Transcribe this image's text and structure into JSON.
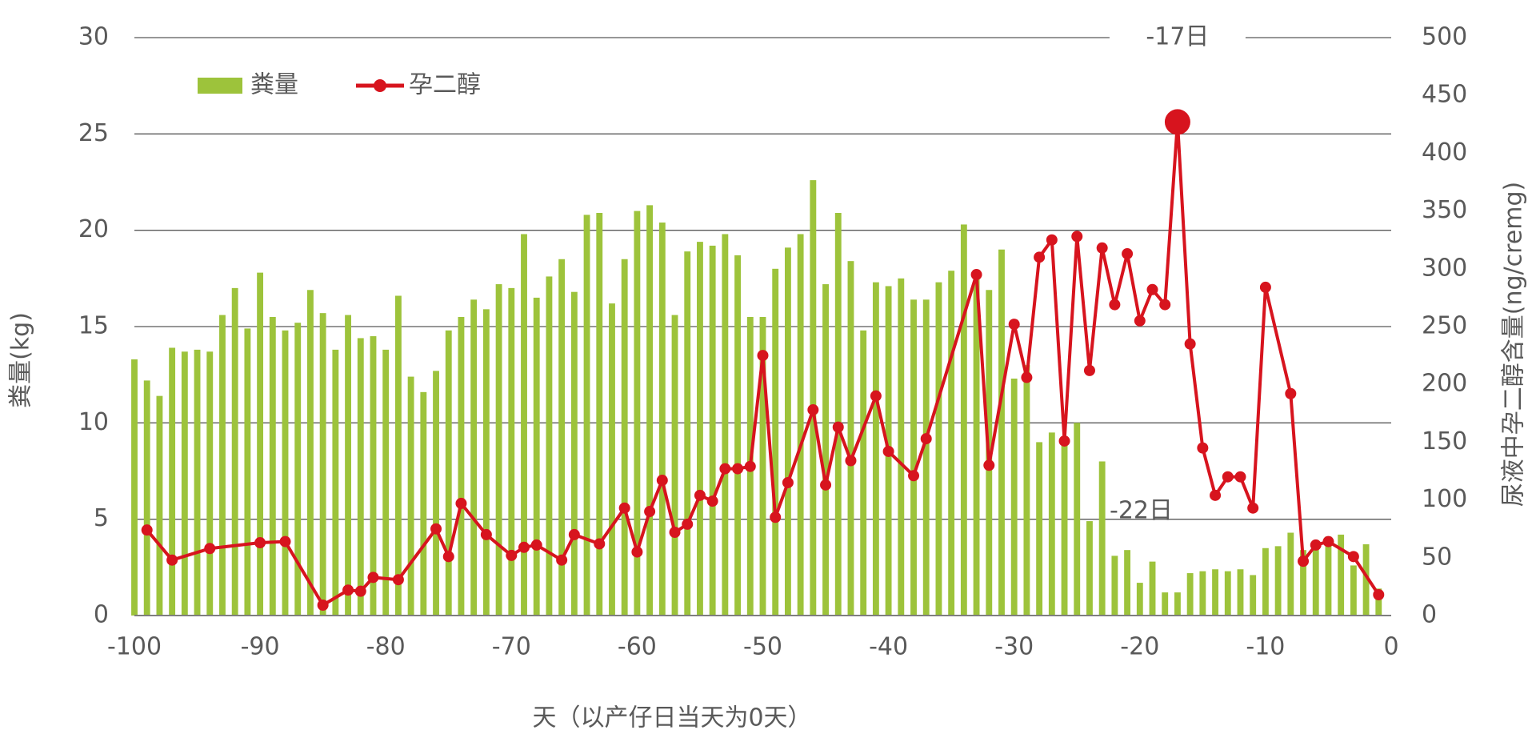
{
  "chart_data": {
    "type": "combo",
    "x_label": "天（以产仔日当天为0天）",
    "y_label": "粪量(kg)",
    "y2_label": "尿液中孕二醇含量(ng/cremg)",
    "xlim": [
      -100,
      0
    ],
    "xticks": [
      -100,
      -90,
      -80,
      -70,
      -60,
      -50,
      -40,
      -30,
      -20,
      -10,
      0
    ],
    "ylim": [
      0,
      30
    ],
    "yticks": [
      0,
      5,
      10,
      15,
      20,
      25,
      30
    ],
    "y2lim": [
      0,
      500
    ],
    "y2ticks": [
      0,
      50,
      100,
      150,
      200,
      250,
      300,
      350,
      400,
      450,
      500
    ],
    "grid": true,
    "legend": "top-left",
    "annotations": [
      "-17日",
      "-22日"
    ],
    "series": [
      {
        "name": "粪量",
        "type": "bar",
        "color": "#9dc33b",
        "x": [
          -100,
          -99,
          -98,
          -97,
          -96,
          -95,
          -94,
          -93,
          -92,
          -91,
          -90,
          -89,
          -88,
          -87,
          -86,
          -85,
          -84,
          -83,
          -82,
          -81,
          -80,
          -79,
          -78,
          -77,
          -76,
          -75,
          -74,
          -73,
          -72,
          -71,
          -70,
          -69,
          -68,
          -67,
          -66,
          -65,
          -64,
          -63,
          -62,
          -61,
          -60,
          -59,
          -58,
          -57,
          -56,
          -55,
          -54,
          -53,
          -52,
          -51,
          -50,
          -49,
          -48,
          -47,
          -46,
          -45,
          -44,
          -43,
          -42,
          -41,
          -40,
          -39,
          -38,
          -37,
          -36,
          -35,
          -34,
          -33,
          -32,
          -31,
          -30,
          -29,
          -28,
          -27,
          -26,
          -25,
          -24,
          -23,
          -22,
          -21,
          -20,
          -19,
          -18,
          -17,
          -16,
          -15,
          -14,
          -13,
          -12,
          -11,
          -10,
          -9,
          -8,
          -7,
          -6,
          -5,
          -4,
          -3,
          -2,
          -1
        ],
        "values": [
          13.3,
          12.2,
          11.4,
          13.9,
          13.7,
          13.8,
          13.7,
          15.6,
          17.0,
          14.9,
          17.8,
          15.5,
          14.8,
          15.2,
          16.9,
          15.7,
          13.8,
          15.6,
          14.4,
          14.5,
          13.8,
          16.6,
          12.4,
          11.6,
          12.7,
          14.8,
          15.5,
          16.4,
          15.9,
          17.2,
          17.0,
          19.8,
          16.5,
          17.6,
          18.5,
          16.8,
          20.8,
          20.9,
          16.2,
          18.5,
          21.0,
          21.3,
          20.4,
          15.6,
          18.9,
          19.4,
          19.2,
          19.8,
          18.7,
          15.5,
          15.5,
          18.0,
          19.1,
          19.8,
          22.6,
          17.2,
          20.9,
          18.4,
          14.8,
          17.3,
          17.1,
          17.5,
          16.4,
          16.4,
          17.3,
          17.9,
          20.3,
          17.6,
          16.9,
          19.0,
          12.3,
          13.0,
          9.0,
          9.5,
          9.3,
          10.0,
          4.9,
          8.0,
          3.1,
          3.4,
          1.7,
          2.8,
          1.2,
          1.2,
          2.2,
          2.3,
          2.4,
          2.3,
          2.4,
          2.1,
          3.5,
          3.6,
          4.3,
          3.4,
          3.8,
          4.1,
          4.2,
          2.6,
          3.7,
          1.4
        ]
      },
      {
        "name": "孕二醇",
        "type": "line",
        "axis": "y2",
        "color": "#d7141e",
        "x": [
          -99,
          -97,
          -94,
          -90,
          -88,
          -85,
          -83,
          -82,
          -81,
          -79,
          -76,
          -75,
          -74,
          -72,
          -70,
          -69,
          -68,
          -66,
          -65,
          -63,
          -61,
          -60,
          -59,
          -58,
          -57,
          -56,
          -55,
          -54,
          -53,
          -52,
          -51,
          -50,
          -49,
          -48,
          -46,
          -45,
          -44,
          -43,
          -41,
          -40,
          -38,
          -37,
          -33,
          -32,
          -30,
          -29,
          -28,
          -27,
          -26,
          -25,
          -24,
          -23,
          -22,
          -21,
          -20,
          -19,
          -18,
          -17,
          -16,
          -15,
          -14,
          -13,
          -12,
          -11,
          -10,
          -8,
          -7,
          -6,
          -5,
          -3,
          -1
        ],
        "values": [
          74,
          48,
          58,
          63,
          64,
          9,
          22,
          21,
          33,
          31,
          75,
          51,
          97,
          70,
          52,
          59,
          61,
          48,
          70,
          62,
          93,
          55,
          90,
          117,
          72,
          79,
          104,
          99,
          127,
          127,
          129,
          225,
          85,
          115,
          178,
          113,
          163,
          134,
          190,
          142,
          121,
          153,
          295,
          130,
          252,
          206,
          310,
          325,
          151,
          328,
          212,
          318,
          269,
          313,
          255,
          282,
          269,
          427,
          235,
          145,
          104,
          120,
          120,
          93,
          284,
          192,
          47,
          61,
          64,
          51,
          18
        ]
      }
    ]
  }
}
